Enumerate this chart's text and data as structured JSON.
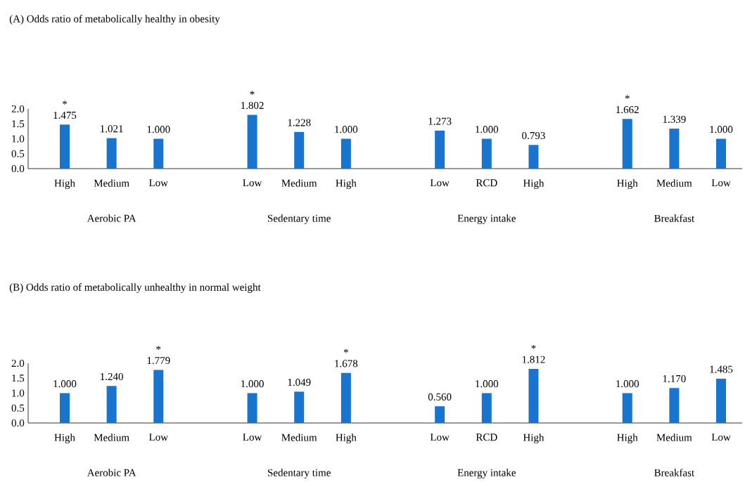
{
  "chart_data": [
    {
      "type": "bar",
      "title": "(A) Odds ratio of metabolically healthy in obesity",
      "color": "#1874cd",
      "categories": [
        "High",
        "Medium",
        "Low",
        null,
        "Low",
        "Medium",
        "High",
        null,
        "Low",
        "RCD",
        "High",
        null,
        "High",
        "Medium",
        "Low"
      ],
      "values": [
        1.475,
        1.021,
        1.0,
        null,
        1.802,
        1.228,
        1.0,
        null,
        1.273,
        1.0,
        0.793,
        null,
        1.662,
        1.339,
        1.0
      ],
      "value_labels": [
        "1.475",
        "1.021",
        "1.000",
        null,
        "1.802",
        "1.228",
        "1.000",
        null,
        "1.273",
        "1.000",
        "0.793",
        null,
        "1.662",
        "1.339",
        "1.000"
      ],
      "ylim": [
        0,
        2
      ],
      "yticks": [
        {
          "value": 0,
          "label": "0.0"
        },
        {
          "value": 0.5,
          "label": "0.5"
        },
        {
          "value": 1,
          "label": "1.0"
        },
        {
          "value": 1.5,
          "label": "1.5"
        },
        {
          "value": 2,
          "label": "2.0"
        }
      ],
      "annotations": [
        "Aerobic PA",
        "Sedentary time",
        "Energy intake",
        "Breakfast",
        {
          "text": "*",
          "y": 1.475
        },
        {
          "text": "*",
          "y": 1.802
        },
        {
          "text": "*",
          "y": 1.662
        }
      ]
    },
    {
      "type": "bar",
      "title": "(B) Odds ratio of metabolically unhealthy in normal weight",
      "color": "#1874cd",
      "categories": [
        "High",
        "Medium",
        "Low",
        null,
        "Low",
        "Medium",
        "High",
        null,
        "Low",
        "RCD",
        "High",
        null,
        "High",
        "Medium",
        "Low"
      ],
      "values": [
        1.0,
        1.24,
        1.779,
        null,
        1.0,
        1.049,
        1.678,
        null,
        0.56,
        1.0,
        1.812,
        null,
        1.0,
        1.17,
        1.485
      ],
      "value_labels": [
        "1.000",
        "1.240",
        "1.779",
        null,
        "1.000",
        "1.049",
        "1.678",
        null,
        "0.560",
        "1.000",
        "1.812",
        null,
        "1.000",
        "1.170",
        "1.485"
      ],
      "ylim": [
        0,
        2
      ],
      "yticks": [
        {
          "value": 0,
          "label": "0.0"
        },
        {
          "value": 0.5,
          "label": "0.5"
        },
        {
          "value": 1,
          "label": "1.0"
        },
        {
          "value": 1.5,
          "label": "1.5"
        },
        {
          "value": 2,
          "label": "2.0"
        }
      ],
      "annotations": [
        "Aerobic PA",
        "Sedentary time",
        "Energy intake",
        "Breakfast",
        {
          "text": "*",
          "y": 1.779
        },
        {
          "text": "*",
          "y": 1.678
        },
        {
          "text": "*",
          "y": 1.812
        }
      ]
    }
  ]
}
